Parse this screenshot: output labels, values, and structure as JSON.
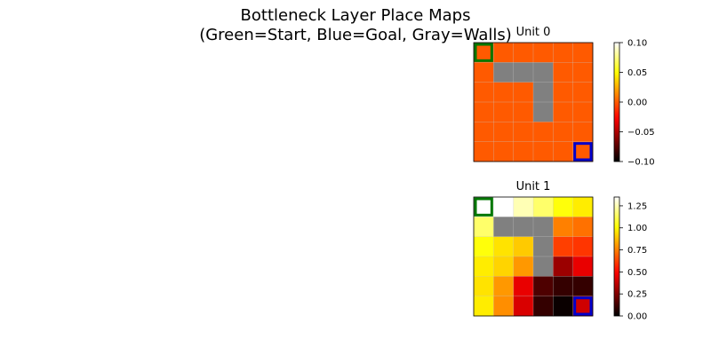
{
  "figure": {
    "title_line1": "Bottleneck Layer Place Maps",
    "title_line2": "(Green=Start, Blue=Goal, Gray=Walls)"
  },
  "colors": {
    "start_marker": "#007700",
    "goal_marker": "#0000cc",
    "wall": "#808080",
    "grid_line": "#c8c8c8"
  },
  "chart_data": [
    {
      "type": "heatmap",
      "title": "Unit 0",
      "colormap": "hot",
      "vmin": -0.1,
      "vmax": 0.1,
      "colorbar_ticks": [
        0.1,
        0.05,
        0.0,
        -0.05,
        -0.1
      ],
      "colorbar_tick_labels": [
        "0.10",
        "0.05",
        "0.00",
        "−0.05",
        "−0.10"
      ],
      "grid": [
        [
          0,
          0,
          0,
          0,
          0,
          0
        ],
        [
          0,
          null,
          null,
          null,
          0,
          0
        ],
        [
          0,
          0,
          0,
          null,
          0,
          0
        ],
        [
          0,
          0,
          0,
          null,
          0,
          0
        ],
        [
          0,
          0,
          0,
          0,
          0,
          0
        ],
        [
          0,
          0,
          0,
          0,
          0,
          0
        ]
      ],
      "start": [
        0,
        0
      ],
      "goal": [
        5,
        5
      ]
    },
    {
      "type": "heatmap",
      "title": "Unit 1",
      "colormap": "hot",
      "vmin": 0,
      "vmax": 1.35,
      "colorbar_ticks": [
        1.25,
        1.0,
        0.75,
        0.5,
        0.25,
        0.0
      ],
      "colorbar_tick_labels": [
        "1.25",
        "1.00",
        "0.75",
        "0.50",
        "0.25",
        "0.00"
      ],
      "grid": [
        [
          1.35,
          1.35,
          1.25,
          1.15,
          1.02,
          0.97
        ],
        [
          1.15,
          null,
          null,
          null,
          0.75,
          0.72
        ],
        [
          1.02,
          0.95,
          0.9,
          null,
          0.62,
          0.6
        ],
        [
          0.97,
          0.92,
          0.8,
          null,
          0.3,
          0.45
        ],
        [
          0.95,
          0.8,
          0.45,
          0.15,
          0.1,
          0.1
        ],
        [
          0.97,
          0.78,
          0.42,
          0.1,
          0.02,
          0.4
        ]
      ],
      "start": [
        0,
        0
      ],
      "goal": [
        5,
        5
      ]
    }
  ]
}
